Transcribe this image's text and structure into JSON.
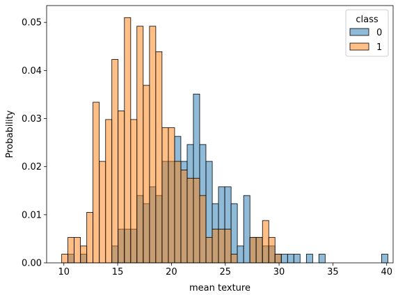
{
  "chart_data": {
    "type": "bar",
    "subtype": "overlaid-histogram",
    "xlabel": "mean texture",
    "ylabel": "Probability",
    "xlim": [
      8.4,
      40.6
    ],
    "ylim": [
      0,
      0.0535
    ],
    "x_ticks": [
      10,
      15,
      20,
      25,
      30,
      35,
      40
    ],
    "x_tick_labels": [
      "10",
      "15",
      "20",
      "25",
      "30",
      "35",
      "40"
    ],
    "y_ticks": [
      0,
      0.01,
      0.02,
      0.03,
      0.04,
      0.05
    ],
    "y_tick_labels": [
      "0.00",
      "0.01",
      "0.02",
      "0.03",
      "0.04",
      "0.05"
    ],
    "grid": false,
    "legend": {
      "title": "class",
      "placement": "top-right",
      "entries": [
        "0",
        "1"
      ]
    },
    "bin_width": 0.5829,
    "series": [
      {
        "name": "0",
        "color": "#1f77b4",
        "bins": [
          {
            "x0": 10.38,
            "value": 0.0018
          },
          {
            "x0": 11.55,
            "value": 0.0018
          },
          {
            "x0": 14.46,
            "value": 0.0035
          },
          {
            "x0": 15.04,
            "value": 0.007
          },
          {
            "x0": 15.63,
            "value": 0.007
          },
          {
            "x0": 16.21,
            "value": 0.007
          },
          {
            "x0": 16.79,
            "value": 0.014
          },
          {
            "x0": 17.38,
            "value": 0.0123
          },
          {
            "x0": 17.96,
            "value": 0.0158
          },
          {
            "x0": 18.54,
            "value": 0.014
          },
          {
            "x0": 19.13,
            "value": 0.0211
          },
          {
            "x0": 19.71,
            "value": 0.0211
          },
          {
            "x0": 20.29,
            "value": 0.0263
          },
          {
            "x0": 20.88,
            "value": 0.0211
          },
          {
            "x0": 21.46,
            "value": 0.0246
          },
          {
            "x0": 22.04,
            "value": 0.0351
          },
          {
            "x0": 22.62,
            "value": 0.0246
          },
          {
            "x0": 23.21,
            "value": 0.0211
          },
          {
            "x0": 23.79,
            "value": 0.0123
          },
          {
            "x0": 24.37,
            "value": 0.0158
          },
          {
            "x0": 24.96,
            "value": 0.0158
          },
          {
            "x0": 25.54,
            "value": 0.0123
          },
          {
            "x0": 26.12,
            "value": 0.0035
          },
          {
            "x0": 26.71,
            "value": 0.014
          },
          {
            "x0": 27.29,
            "value": 0.0053
          },
          {
            "x0": 27.87,
            "value": 0.0053
          },
          {
            "x0": 28.46,
            "value": 0.0035
          },
          {
            "x0": 29.04,
            "value": 0.0035
          },
          {
            "x0": 29.62,
            "value": 0.0018
          },
          {
            "x0": 30.21,
            "value": 0.0018
          },
          {
            "x0": 30.79,
            "value": 0.0018
          },
          {
            "x0": 31.37,
            "value": 0.0018
          },
          {
            "x0": 32.54,
            "value": 0.0018
          },
          {
            "x0": 33.7,
            "value": 0.0018
          },
          {
            "x0": 39.53,
            "value": 0.0018
          }
        ]
      },
      {
        "name": "1",
        "color": "#ff7f0e",
        "bins": [
          {
            "x0": 9.8,
            "value": 0.0018
          },
          {
            "x0": 10.38,
            "value": 0.0053
          },
          {
            "x0": 10.96,
            "value": 0.0053
          },
          {
            "x0": 11.55,
            "value": 0.0035
          },
          {
            "x0": 12.13,
            "value": 0.0105
          },
          {
            "x0": 12.71,
            "value": 0.0334
          },
          {
            "x0": 13.3,
            "value": 0.0211
          },
          {
            "x0": 13.88,
            "value": 0.0298
          },
          {
            "x0": 14.46,
            "value": 0.0423
          },
          {
            "x0": 15.04,
            "value": 0.0316
          },
          {
            "x0": 15.63,
            "value": 0.051
          },
          {
            "x0": 16.21,
            "value": 0.0298
          },
          {
            "x0": 16.79,
            "value": 0.0492
          },
          {
            "x0": 17.38,
            "value": 0.0369
          },
          {
            "x0": 17.96,
            "value": 0.0492
          },
          {
            "x0": 18.54,
            "value": 0.0439
          },
          {
            "x0": 19.13,
            "value": 0.0281
          },
          {
            "x0": 19.71,
            "value": 0.0281
          },
          {
            "x0": 20.29,
            "value": 0.0211
          },
          {
            "x0": 20.88,
            "value": 0.0193
          },
          {
            "x0": 21.46,
            "value": 0.0176
          },
          {
            "x0": 22.04,
            "value": 0.0176
          },
          {
            "x0": 22.62,
            "value": 0.014
          },
          {
            "x0": 23.21,
            "value": 0.0053
          },
          {
            "x0": 23.79,
            "value": 0.007
          },
          {
            "x0": 24.37,
            "value": 0.007
          },
          {
            "x0": 24.96,
            "value": 0.007
          },
          {
            "x0": 25.54,
            "value": 0.0018
          },
          {
            "x0": 27.29,
            "value": 0.0053
          },
          {
            "x0": 27.87,
            "value": 0.0053
          },
          {
            "x0": 28.46,
            "value": 0.0088
          },
          {
            "x0": 29.04,
            "value": 0.0053
          },
          {
            "x0": 29.62,
            "value": 0.0018
          }
        ]
      }
    ]
  }
}
